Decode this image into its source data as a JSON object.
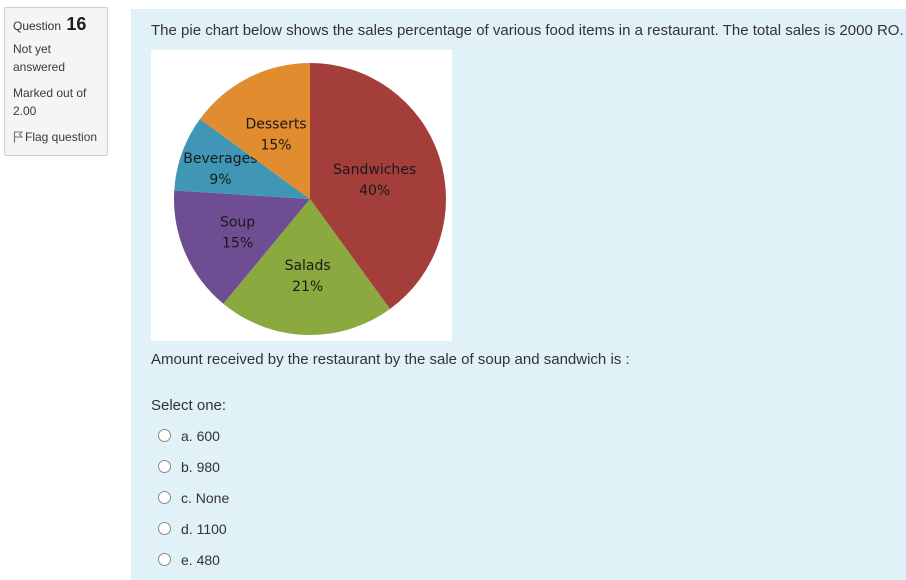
{
  "info": {
    "question_label": "Question",
    "question_number": "16",
    "state": "Not yet answered",
    "grade": "Marked out of 2.00",
    "flag_label": "Flag question"
  },
  "question": {
    "text": "The pie chart below shows the sales percentage of various food items in a restaurant. The total sales is 2000 RO.",
    "prompt": "Amount received by the restaurant by the sale of soup and sandwich is :",
    "select_label": "Select one:",
    "options": [
      {
        "label": "a. 600"
      },
      {
        "label": "b. 980"
      },
      {
        "label": "c. None"
      },
      {
        "label": "d. 1100"
      },
      {
        "label": "e. 480"
      }
    ]
  },
  "chart_data": {
    "type": "pie",
    "slices": [
      {
        "name": "Sandwiches",
        "value": 40,
        "label": "40%",
        "color": "#a33e3a"
      },
      {
        "name": "Salads",
        "value": 21,
        "label": "21%",
        "color": "#8aaa3f"
      },
      {
        "name": "Soup",
        "value": 15,
        "label": "15%",
        "color": "#6e4d93"
      },
      {
        "name": "Beverages",
        "value": 9,
        "label": "9%",
        "color": "#3f97b5"
      },
      {
        "name": "Desserts",
        "value": 15,
        "label": "15%",
        "color": "#e08c2f"
      }
    ]
  }
}
